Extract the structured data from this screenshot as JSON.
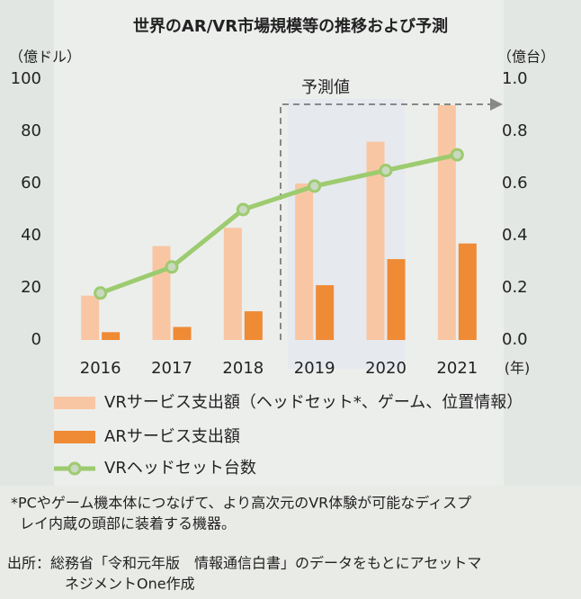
{
  "chart_data": {
    "type": "bar-line",
    "title": "世界のAR/VR市場規模等の推移および予測",
    "y_unit": "（億ドル）",
    "y2_unit": "（億台）",
    "x_unit": "(年)",
    "annotation": "予測値",
    "categories": [
      "2016",
      "2017",
      "2018",
      "2019",
      "2020",
      "2021"
    ],
    "series": [
      {
        "name": "VRサービス支出額（ヘッドセット*、ゲーム、位置情報）",
        "type": "bar",
        "color": "#f9c6a3",
        "values": [
          17,
          36,
          43,
          60,
          76,
          90
        ]
      },
      {
        "name": "ARサービス支出額",
        "type": "bar",
        "color": "#ef8a35",
        "values": [
          3,
          5,
          11,
          21,
          31,
          37
        ]
      },
      {
        "name": "VRヘッドセット台数",
        "type": "line",
        "axis": "y2",
        "color": "#9dcb6f",
        "values": [
          0.18,
          0.28,
          0.5,
          0.59,
          0.65,
          0.71
        ]
      }
    ],
    "ylim": [
      0,
      100
    ],
    "yticks": [
      0,
      20,
      40,
      60,
      80,
      100
    ],
    "y2lim": [
      0,
      1
    ],
    "y2ticks": [
      {
        "value": 0,
        "label": "0.0"
      },
      0.2,
      0.4,
      0.6,
      0.8,
      {
        "value": 1,
        "label": "1.0"
      }
    ],
    "footnote": [
      "*PCやゲーム機本体につなげて、より高次元のVR体験が可能なディスプ",
      "レイ内蔵の頭部に装着する機器。"
    ],
    "source": [
      "出所：総務省「令和元年版　情報通信白書」のデータをもとにアセットマ",
      "ネジメントOne作成"
    ]
  }
}
